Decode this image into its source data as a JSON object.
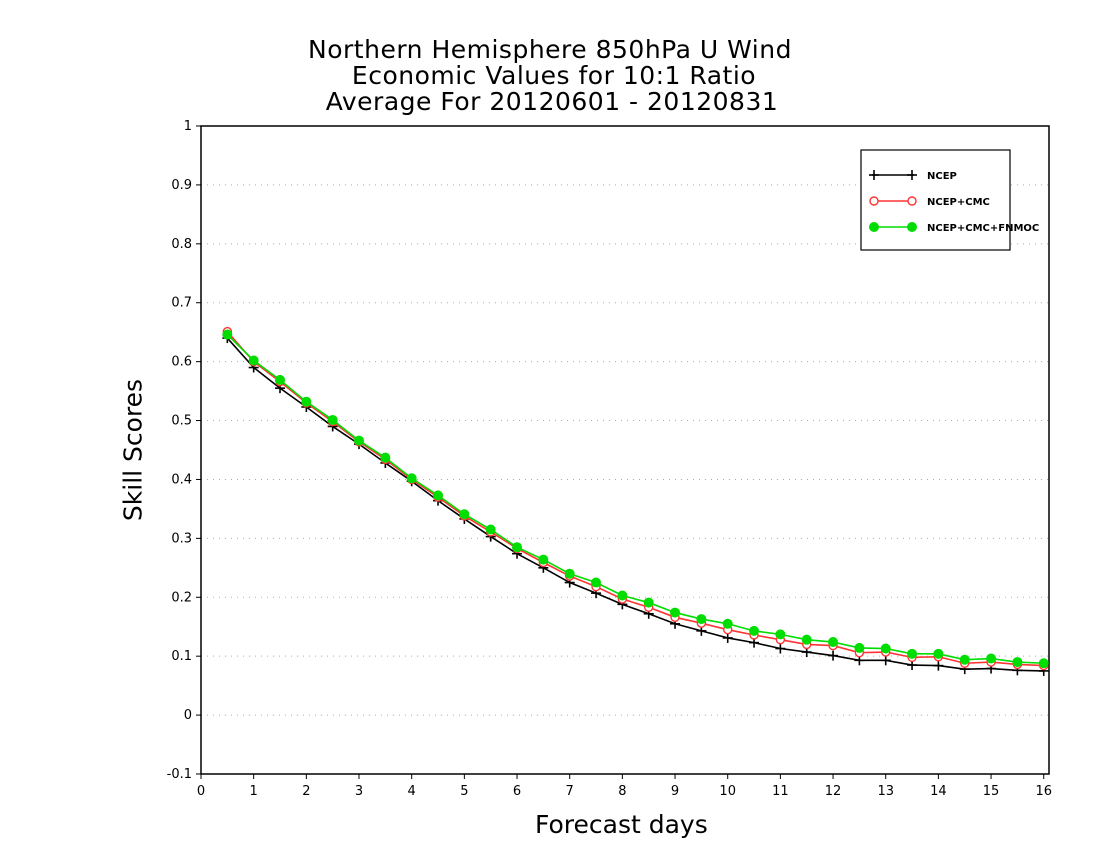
{
  "chart_data": {
    "type": "line",
    "title_lines": [
      "Northern Hemisphere 850hPa U Wind",
      "Economic Values for 10:1 Ratio",
      "Average For 20120601 - 20120831"
    ],
    "xlabel": "Forecast days",
    "ylabel": "Skill Scores",
    "xlim": [
      0,
      16.1
    ],
    "ylim": [
      -0.1,
      1
    ],
    "xticks": [
      "0",
      "1",
      "2",
      "3",
      "4",
      "5",
      "6",
      "7",
      "8",
      "9",
      "10",
      "11",
      "12",
      "13",
      "14",
      "15",
      "16"
    ],
    "yticks": [
      "-0.1",
      "0",
      "0.1",
      "0.2",
      "0.3",
      "0.4",
      "0.5",
      "0.6",
      "0.7",
      "0.8",
      "0.9",
      "1"
    ],
    "grid": "horizontal dotted",
    "legend_position": "top-right",
    "x": [
      0.5,
      1,
      1.5,
      2,
      2.5,
      3,
      3.5,
      4,
      4.5,
      5,
      5.5,
      6,
      6.5,
      7,
      7.5,
      8,
      8.5,
      9,
      9.5,
      10,
      10.5,
      11,
      11.5,
      12,
      12.5,
      13,
      13.5,
      14,
      14.5,
      15,
      15.5,
      16
    ],
    "series": [
      {
        "name": "NCEP",
        "color": "#000000",
        "marker": "plus",
        "values": [
          0.64,
          0.59,
          0.555,
          0.523,
          0.49,
          0.46,
          0.428,
          0.397,
          0.364,
          0.333,
          0.303,
          0.274,
          0.25,
          0.225,
          0.207,
          0.188,
          0.172,
          0.155,
          0.143,
          0.131,
          0.123,
          0.113,
          0.107,
          0.101,
          0.093,
          0.093,
          0.085,
          0.084,
          0.078,
          0.079,
          0.076,
          0.075
        ]
      },
      {
        "name": "NCEP+CMC",
        "color": "#ff3333",
        "marker": "open-circle",
        "values": [
          0.651,
          0.6,
          0.566,
          0.53,
          0.498,
          0.464,
          0.434,
          0.4,
          0.37,
          0.338,
          0.311,
          0.283,
          0.259,
          0.236,
          0.218,
          0.197,
          0.183,
          0.166,
          0.156,
          0.145,
          0.136,
          0.128,
          0.12,
          0.118,
          0.106,
          0.107,
          0.098,
          0.099,
          0.088,
          0.09,
          0.086,
          0.084
        ]
      },
      {
        "name": "NCEP+CMC+FNMOC",
        "color": "#00dd00",
        "marker": "filled-circle",
        "values": [
          0.646,
          0.602,
          0.569,
          0.532,
          0.501,
          0.466,
          0.437,
          0.402,
          0.373,
          0.341,
          0.315,
          0.285,
          0.264,
          0.24,
          0.225,
          0.203,
          0.191,
          0.174,
          0.163,
          0.155,
          0.143,
          0.137,
          0.128,
          0.124,
          0.114,
          0.113,
          0.104,
          0.104,
          0.094,
          0.096,
          0.09,
          0.088
        ]
      }
    ]
  }
}
